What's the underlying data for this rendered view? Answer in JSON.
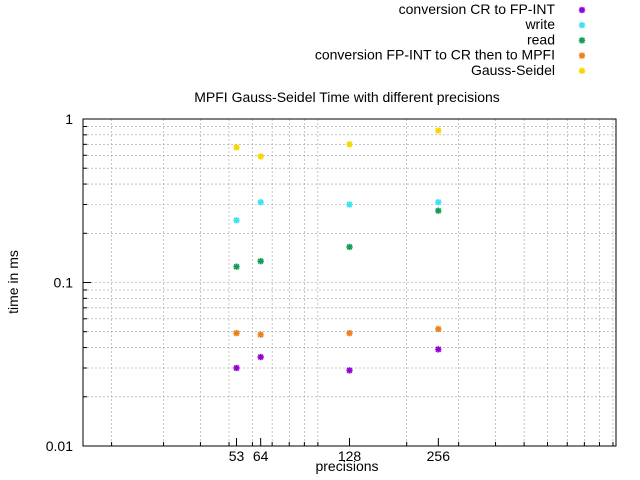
{
  "chart_data": {
    "type": "scatter",
    "title": "MPFI Gauss-Seidel Time with different precisions",
    "xlabel": "precisions",
    "ylabel": "time in ms",
    "x_scale": "log",
    "y_scale": "log",
    "xlim": [
      16,
      1024
    ],
    "ylim": [
      0.01,
      1
    ],
    "x_ticks": [
      53,
      64,
      128,
      256
    ],
    "x_tick_labels": [
      "53",
      "64",
      "128",
      "256"
    ],
    "y_ticks": [
      0.01,
      0.1,
      1
    ],
    "y_tick_labels": [
      "0.01",
      "0.1",
      "1"
    ],
    "grid": true,
    "legend_position": "top-right",
    "series": [
      {
        "name": "conversion CR to FP-INT",
        "color": "#9400d3",
        "points": [
          [
            53,
            0.03
          ],
          [
            64,
            0.035
          ],
          [
            128,
            0.029
          ],
          [
            256,
            0.039
          ]
        ]
      },
      {
        "name": "write",
        "color": "#40e0f0",
        "points": [
          [
            53,
            0.24
          ],
          [
            64,
            0.31
          ],
          [
            128,
            0.3
          ],
          [
            256,
            0.31
          ]
        ]
      },
      {
        "name": "read",
        "color": "#119f55",
        "points": [
          [
            53,
            0.125
          ],
          [
            64,
            0.135
          ],
          [
            128,
            0.165
          ],
          [
            256,
            0.275
          ]
        ]
      },
      {
        "name": "conversion FP-INT to CR then to MPFI",
        "color": "#f07f1a",
        "points": [
          [
            53,
            0.049
          ],
          [
            64,
            0.048
          ],
          [
            128,
            0.049
          ],
          [
            256,
            0.052
          ]
        ]
      },
      {
        "name": "Gauss-Seidel",
        "color": "#f5d800",
        "points": [
          [
            53,
            0.67
          ],
          [
            64,
            0.59
          ],
          [
            128,
            0.7
          ],
          [
            256,
            0.85
          ]
        ]
      }
    ]
  }
}
